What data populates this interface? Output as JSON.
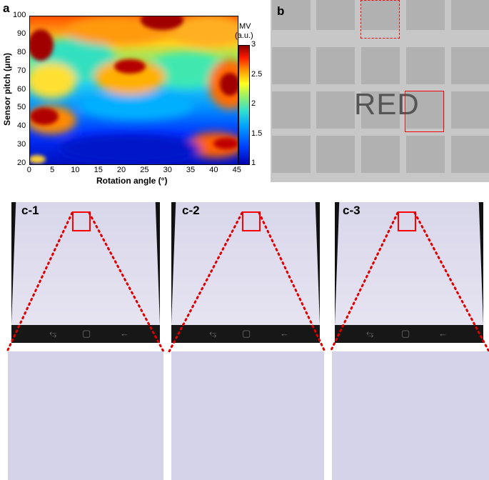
{
  "panel_a": {
    "label": "a",
    "colorbar_title_line1": "MV",
    "colorbar_title_line2": "(a.u.)",
    "colorbar_ticks": [
      "3",
      "2.5",
      "2",
      "1.5",
      "1"
    ]
  },
  "panel_b": {
    "label": "b",
    "overlay_text": "RED",
    "red_box_color": "#ff0000"
  },
  "panel_c": {
    "labels": [
      "c-1",
      "c-2",
      "c-3"
    ],
    "nav_icons": [
      "recent-apps-icon",
      "home-icon",
      "back-icon"
    ],
    "nav_glyphs": [
      "⥃",
      "▢",
      "←"
    ],
    "highlight_color": "#ff0000"
  },
  "chart_data": {
    "type": "heatmap",
    "title": "",
    "xlabel": "Rotation angle (°)",
    "ylabel": "Sensor pitch (μm)",
    "xticks": [
      "0",
      "5",
      "10",
      "15",
      "20",
      "25",
      "30",
      "35",
      "40",
      "45"
    ],
    "yticks": [
      "100",
      "90",
      "80",
      "70",
      "60",
      "50",
      "40",
      "30",
      "20"
    ],
    "xlim": [
      0,
      45
    ],
    "ylim": [
      20,
      100
    ],
    "colorbar_label": "MV (a.u.)",
    "colorbar_range": [
      1,
      3
    ],
    "colormap": "jet",
    "hotspots": [
      {
        "x": 2,
        "y": 85,
        "value": 3
      },
      {
        "x": 2.5,
        "y": 45,
        "value": 3
      },
      {
        "x": 18,
        "y": 73,
        "value": 3
      },
      {
        "x": 25,
        "y": 98,
        "value": 3
      },
      {
        "x": 43,
        "y": 67,
        "value": 3
      },
      {
        "x": 42,
        "y": 31,
        "value": 2.8
      }
    ]
  }
}
